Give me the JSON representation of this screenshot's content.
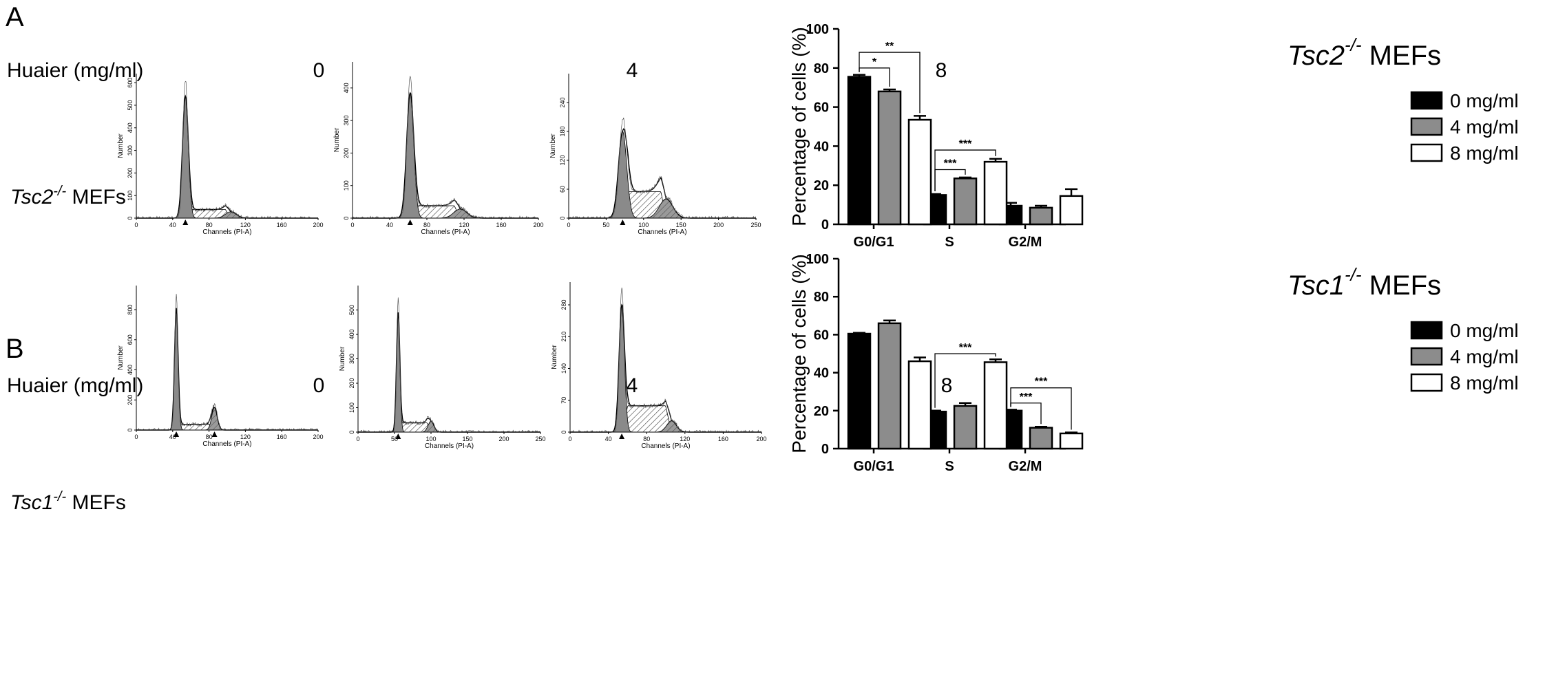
{
  "figure": {
    "panels": [
      {
        "letter": "A",
        "treatment_label": "Huaier (mg/ml)",
        "sample_label_name": "Tsc2",
        "sample_label_sup": "-/-",
        "sample_label_rest": " MEFs",
        "doses": [
          "0",
          "4",
          "8"
        ]
      },
      {
        "letter": "B",
        "treatment_label": "Huaier (mg/ml)",
        "sample_label_name": "Tsc1",
        "sample_label_sup": "-/-",
        "sample_label_rest": " MEFs",
        "doses": [
          "0",
          "4",
          "8"
        ]
      }
    ]
  },
  "chart_data": [
    {
      "type": "area",
      "panel": "A",
      "dose": "0",
      "xlabel": "Channels (PI-A)",
      "ylabel": "Number",
      "xlim": [
        0,
        200
      ],
      "ylim": [
        0,
        640
      ],
      "xticks": [
        0,
        40,
        80,
        120,
        160,
        200
      ],
      "yticks": [
        0,
        100,
        200,
        300,
        400,
        500,
        600
      ],
      "peaks": [
        {
          "center": 54,
          "height": 540,
          "sigma": 3.2
        },
        {
          "center": 104,
          "height": 28,
          "sigma": 6
        }
      ],
      "s_phase": {
        "from": 54,
        "to": 104,
        "level": 38
      },
      "markers": [
        54
      ]
    },
    {
      "type": "area",
      "panel": "A",
      "dose": "4",
      "xlabel": "Channels (PI-A)",
      "ylabel": "Number",
      "xlim": [
        0,
        200
      ],
      "ylim": [
        0,
        480
      ],
      "xticks": [
        0,
        40,
        80,
        120,
        160,
        200
      ],
      "yticks": [
        0,
        100,
        200,
        300,
        400
      ],
      "peaks": [
        {
          "center": 62,
          "height": 385,
          "sigma": 3.8
        },
        {
          "center": 116,
          "height": 28,
          "sigma": 7
        }
      ],
      "s_phase": {
        "from": 62,
        "to": 116,
        "level": 38
      },
      "markers": [
        62
      ]
    },
    {
      "type": "area",
      "panel": "A",
      "dose": "8",
      "xlabel": "Channels (PI-A)",
      "ylabel": "Number",
      "xlim": [
        0,
        250
      ],
      "ylim": [
        0,
        300
      ],
      "xticks": [
        0,
        50,
        100,
        150,
        200,
        250
      ],
      "yticks": [
        0,
        60,
        120,
        180,
        240
      ],
      "peaks": [
        {
          "center": 72,
          "height": 180,
          "sigma": 5.5
        },
        {
          "center": 130,
          "height": 40,
          "sigma": 9
        }
      ],
      "s_phase": {
        "from": 72,
        "to": 130,
        "level": 55
      },
      "markers": [
        72
      ]
    },
    {
      "type": "area",
      "panel": "B",
      "dose": "0",
      "xlabel": "Channels (PI-A)",
      "ylabel": "Number",
      "xlim": [
        0,
        200
      ],
      "ylim": [
        0,
        960
      ],
      "xticks": [
        0,
        40,
        80,
        120,
        160,
        200
      ],
      "yticks": [
        0,
        200,
        400,
        600,
        800
      ],
      "peaks": [
        {
          "center": 44,
          "height": 810,
          "sigma": 2.0
        },
        {
          "center": 86,
          "height": 150,
          "sigma": 3.0
        }
      ],
      "s_phase": {
        "from": 44,
        "to": 86,
        "level": 38
      },
      "markers": [
        44,
        86
      ]
    },
    {
      "type": "area",
      "panel": "B",
      "dose": "4",
      "xlabel": "Channels (PI-A)",
      "ylabel": "Number",
      "xlim": [
        0,
        250
      ],
      "ylim": [
        0,
        600
      ],
      "xticks": [
        0,
        50,
        100,
        150,
        200,
        250
      ],
      "yticks": [
        0,
        100,
        200,
        300,
        400,
        500
      ],
      "peaks": [
        {
          "center": 55,
          "height": 490,
          "sigma": 2.3
        },
        {
          "center": 100,
          "height": 45,
          "sigma": 4
        }
      ],
      "s_phase": {
        "from": 55,
        "to": 100,
        "level": 38
      },
      "markers": [
        55
      ]
    },
    {
      "type": "area",
      "panel": "B",
      "dose": "8",
      "xlabel": "Channels (PI-A)",
      "ylabel": "Number",
      "xlim": [
        0,
        200
      ],
      "ylim": [
        0,
        330
      ],
      "xticks": [
        0,
        40,
        80,
        120,
        160,
        200
      ],
      "yticks": [
        0,
        70,
        140,
        210,
        280
      ],
      "peaks": [
        {
          "center": 54,
          "height": 280,
          "sigma": 2.8
        },
        {
          "center": 106,
          "height": 25,
          "sigma": 5
        }
      ],
      "s_phase": {
        "from": 54,
        "to": 106,
        "level": 58
      },
      "markers": [
        54
      ]
    },
    {
      "type": "bar",
      "panel": "A",
      "title_name": "Tsc2",
      "title_sup": "-/-",
      "title_rest": " MEFs",
      "ylabel": "Percentage of cells (%)",
      "ylim": [
        0,
        100
      ],
      "yticks": [
        0,
        20,
        40,
        60,
        80,
        100
      ],
      "categories": [
        "G0/G1",
        "S",
        "G2/M"
      ],
      "series": [
        {
          "name": "0 mg/ml",
          "color": "#000000",
          "values": [
            75.5,
            15,
            9.5
          ],
          "errors": [
            1,
            0.5,
            1.5
          ]
        },
        {
          "name": "4 mg/ml",
          "color": "#8c8c8c",
          "values": [
            68,
            23.5,
            8.5
          ],
          "errors": [
            1,
            0.5,
            1
          ]
        },
        {
          "name": "8 mg/ml",
          "color": "#ffffff",
          "values": [
            53.5,
            32,
            14.5
          ],
          "errors": [
            2,
            1.5,
            3.5
          ]
        }
      ],
      "significance": [
        {
          "category": 0,
          "from": 0,
          "to": 1,
          "label": "*",
          "y": 80
        },
        {
          "category": 0,
          "from": 0,
          "to": 2,
          "label": "**",
          "y": 88
        },
        {
          "category": 1,
          "from": 0,
          "to": 1,
          "label": "***",
          "y": 28
        },
        {
          "category": 1,
          "from": 0,
          "to": 2,
          "label": "***",
          "y": 38
        }
      ]
    },
    {
      "type": "bar",
      "panel": "B",
      "title_name": "Tsc1",
      "title_sup": "-/-",
      "title_rest": " MEFs",
      "ylabel": "Percentage of cells (%)",
      "ylim": [
        0,
        100
      ],
      "yticks": [
        0,
        20,
        40,
        60,
        80,
        100
      ],
      "categories": [
        "G0/G1",
        "S",
        "G2/M"
      ],
      "series": [
        {
          "name": "0 mg/ml",
          "color": "#000000",
          "values": [
            60.5,
            19.5,
            20
          ],
          "errors": [
            0.5,
            0.5,
            0.5
          ]
        },
        {
          "name": "4 mg/ml",
          "color": "#8c8c8c",
          "values": [
            66,
            22.5,
            11
          ],
          "errors": [
            1.5,
            1.5,
            0.5
          ]
        },
        {
          "name": "8 mg/ml",
          "color": "#ffffff",
          "values": [
            46,
            45.5,
            8
          ],
          "errors": [
            2,
            1.5,
            0.5
          ]
        }
      ],
      "significance": [
        {
          "category": 1,
          "from": 0,
          "to": 2,
          "label": "***",
          "y": 50
        },
        {
          "category": 2,
          "from": 0,
          "to": 1,
          "label": "***",
          "y": 24
        },
        {
          "category": 2,
          "from": 0,
          "to": 2,
          "label": "***",
          "y": 32
        }
      ]
    }
  ]
}
